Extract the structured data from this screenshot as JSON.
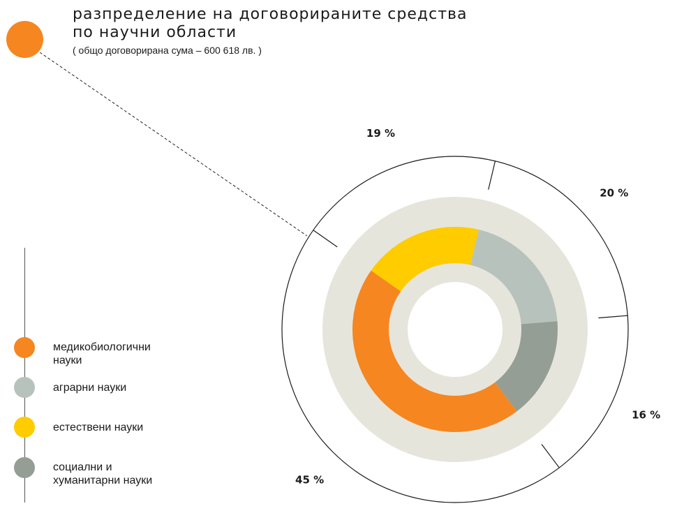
{
  "header": {
    "title_line1": "разпределение на договорираните средства",
    "title_line2": "по научни области",
    "subtitle": "( общо договорирана сума – 600 618 лв. )",
    "dot_color": "#f68620"
  },
  "legend": {
    "items": [
      {
        "label": "медикобиологични\nнауки",
        "color": "#f68620"
      },
      {
        "label": "аграрни науки",
        "color": "#b8c2bc"
      },
      {
        "label": "естествени науки",
        "color": "#ffcc00"
      },
      {
        "label": "социални и\nхуманитарни науки",
        "color": "#949e94"
      }
    ]
  },
  "chart_data": {
    "type": "pie",
    "style": "donut",
    "categories": [
      "медикобиологични науки",
      "аграрни науки",
      "естествени науки",
      "социални и хуманитарни науки"
    ],
    "values": [
      45,
      20,
      19,
      16
    ],
    "percent_labels": [
      "45 %",
      "20 %",
      "19 %",
      "16 %"
    ],
    "colors": [
      "#f68620",
      "#b8c2bc",
      "#ffcc00",
      "#949e94"
    ],
    "track_color": "#e6e5dc"
  }
}
